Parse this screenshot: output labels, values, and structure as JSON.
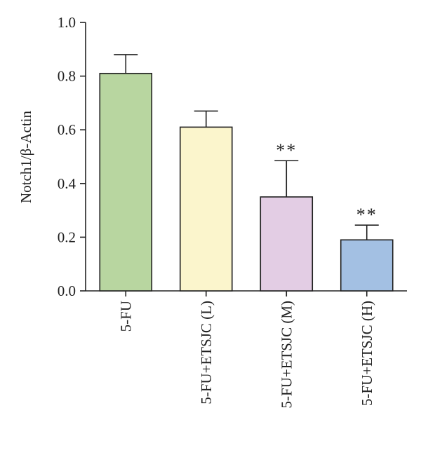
{
  "chart_data": {
    "type": "bar",
    "ylabel": "Notch1/β-Actin",
    "ylim": [
      0.0,
      1.0
    ],
    "yticks": [
      "0.0",
      "0.2",
      "0.4",
      "0.6",
      "0.8",
      "1.0"
    ],
    "categories": [
      "5-FU",
      "5-FU+ETSJC (L)",
      "5-FU+ETSJC (M)",
      "5-FU+ETSJC (H)"
    ],
    "values": [
      0.81,
      0.61,
      0.35,
      0.19
    ],
    "error": [
      0.07,
      0.06,
      0.135,
      0.055
    ],
    "significance": [
      "",
      "",
      "**",
      "**"
    ],
    "colors": [
      "#b8d6a0",
      "#fbf5cc",
      "#e3cde4",
      "#a3c0e3"
    ],
    "grid": false,
    "legend": "none"
  }
}
